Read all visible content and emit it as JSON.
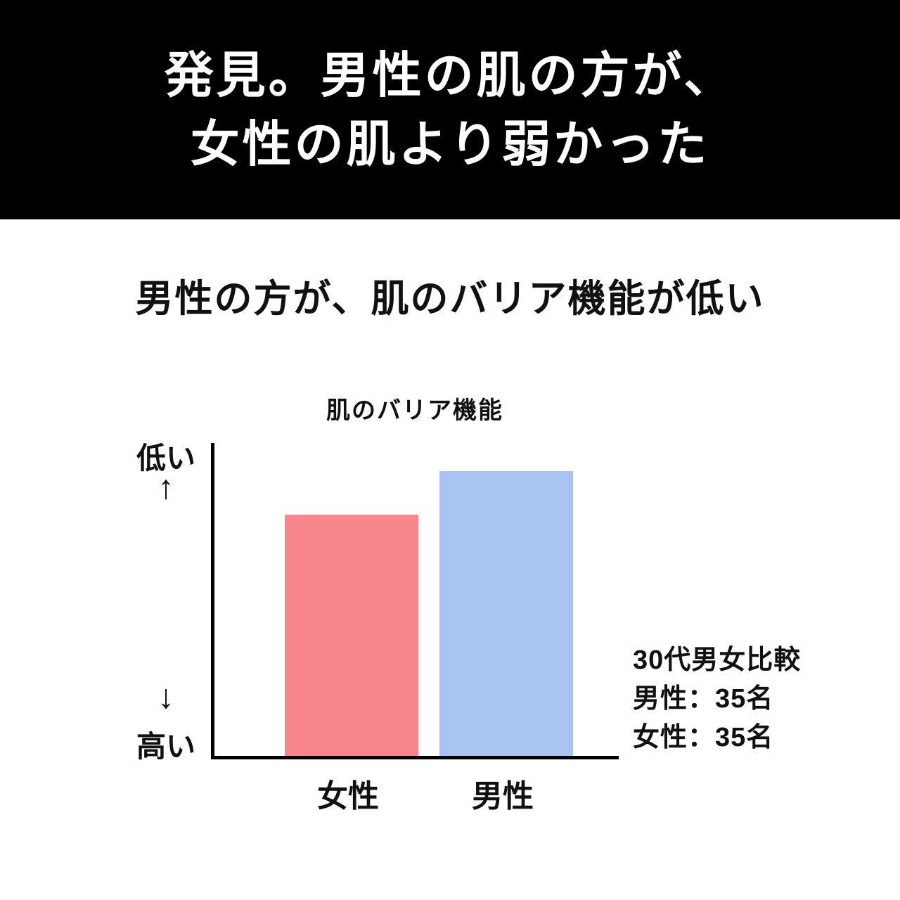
{
  "banner": {
    "line1": "発見。男性の肌の方が、",
    "line2": "女性の肌より弱かった"
  },
  "headline": "男性の方が、肌のバリア機能が低い",
  "chart_data": {
    "type": "bar",
    "title": "肌のバリア機能",
    "categories": [
      "女性",
      "男性"
    ],
    "values": [
      77,
      91
    ],
    "value_scale": "relative bar height percent of plot area; no numeric axis shown",
    "colors": [
      "#F9858D",
      "#A9C4F3"
    ],
    "y_axis": {
      "top_label": "低い",
      "bottom_label": "高い",
      "up_arrow": "↑",
      "down_arrow": "↓"
    },
    "legend": "none",
    "grid": false,
    "annotation": {
      "line1": "30代男女比較",
      "line2": "男性：35名",
      "line3": "女性：35名"
    }
  }
}
